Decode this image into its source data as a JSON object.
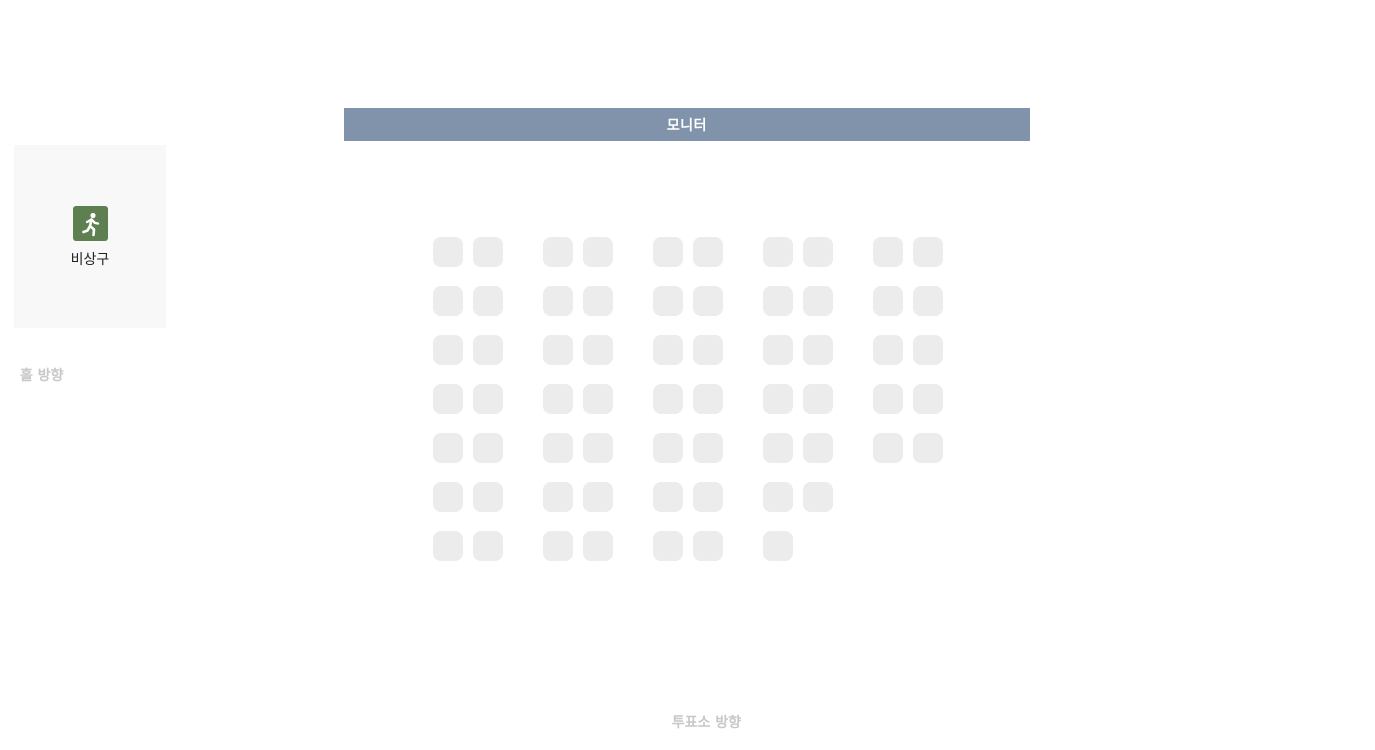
{
  "screen": {
    "label": "모니터"
  },
  "emergency_exit": {
    "icon": "running-person-exit-icon",
    "label": "비상구",
    "icon_color": "#5e7f4f"
  },
  "directions": {
    "hall": "홀 방향",
    "booth": "투표소 방향"
  },
  "seating": {
    "seat_color": "#ececec",
    "rows": [
      10,
      10,
      10,
      10,
      10,
      8,
      7
    ]
  }
}
